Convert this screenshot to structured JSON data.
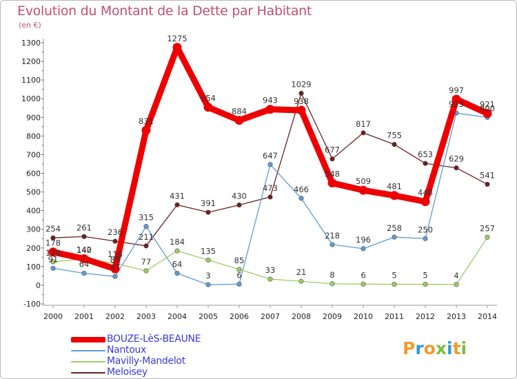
{
  "chart_data": {
    "type": "line",
    "title": "Evolution du Montant de la Dette par Habitant",
    "unit_label": "(en €)",
    "categories": [
      "2000",
      "2001",
      "2002",
      "2003",
      "2004",
      "2005",
      "2006",
      "2007",
      "2008",
      "2009",
      "2010",
      "2011",
      "2012",
      "2013",
      "2014"
    ],
    "ylim": [
      -100,
      1300
    ],
    "yticks": [
      "-100",
      "0",
      "100",
      "200",
      "300",
      "400",
      "500",
      "600",
      "700",
      "800",
      "900",
      "1000",
      "1100",
      "1200",
      "1300"
    ],
    "grid": false,
    "legend_position": "bottom-left",
    "series": [
      {
        "name": "BOUZE-LèS-BEAUNE",
        "color": "#ee0000",
        "values": [
          178,
          142,
          88,
          831,
          1275,
          954,
          884,
          943,
          938,
          548,
          509,
          481,
          448,
          997,
          921
        ],
        "labels": [
          "178",
          "142",
          "88",
          "831",
          "1275",
          "954",
          "884",
          "943",
          "938",
          "548",
          "509",
          "481",
          "448",
          "997",
          "921"
        ]
      },
      {
        "name": "Nantoux",
        "color": "#5b9bd5",
        "values": [
          91,
          64,
          47,
          315,
          64,
          3,
          6,
          647,
          466,
          218,
          196,
          258,
          250,
          923,
          900
        ],
        "labels": [
          "91",
          "64",
          "47",
          "315",
          "64",
          "3",
          "6",
          "647",
          "466",
          "218",
          "196",
          "258",
          "250",
          "923",
          "900"
        ]
      },
      {
        "name": "Mavilly-Mandelot",
        "color": "#9ccc64",
        "values": [
          126,
          140,
          118,
          77,
          184,
          135,
          85,
          33,
          21,
          8,
          6,
          5,
          5,
          4,
          257
        ],
        "labels": [
          "126",
          "140",
          "118",
          "77",
          "184",
          "135",
          "85",
          "33",
          "21",
          "8",
          "6",
          "5",
          "5",
          "4",
          "257"
        ]
      },
      {
        "name": "Meloisey",
        "color": "#6b1f22",
        "values": [
          254,
          261,
          236,
          211,
          431,
          391,
          430,
          473,
          1029,
          677,
          817,
          755,
          653,
          629,
          541
        ],
        "labels": [
          "254",
          "261",
          "236",
          "211",
          "431",
          "391",
          "430",
          "473",
          "1029",
          "677",
          "817",
          "755",
          "653",
          "629",
          "541"
        ]
      }
    ]
  },
  "logo": {
    "text": "Proxiti",
    "letter_colors": [
      "#f19a2e",
      "#2f9bd6",
      "#f19a2e",
      "#7abf3c",
      "#2f9bd6",
      "#f19a2e",
      "#7abf3c"
    ]
  }
}
